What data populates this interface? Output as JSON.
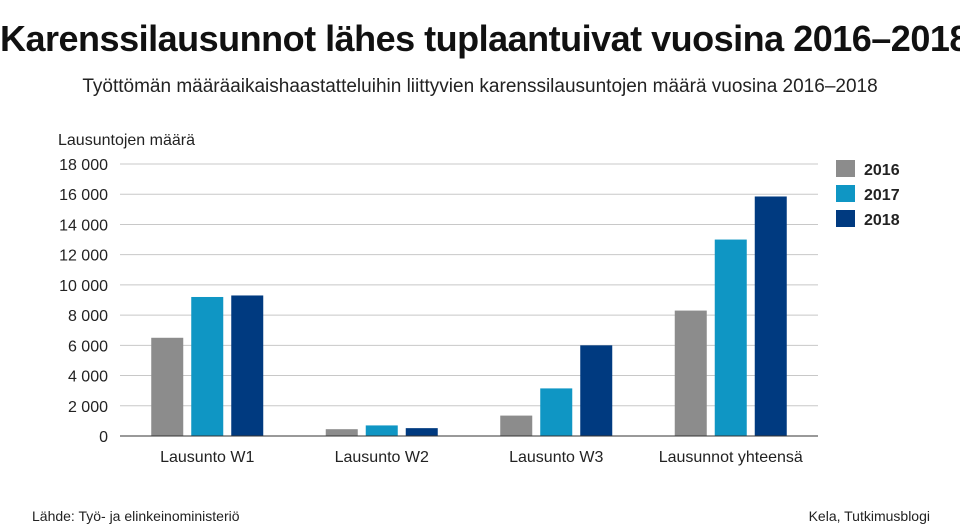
{
  "footer": {
    "source": "Lähde:  Työ- ja elinkeinoministeriö",
    "credit": "Kela, Tutkimusblogi"
  },
  "chart_data": {
    "type": "bar",
    "title": "Karenssilausunnot lähes tuplaantuivat vuosina 2016–2018",
    "subtitle": "Työttömän määräaikaishaastatteluihin liittyvien karenssilausuntojen määrä vuosina 2016–2018",
    "ylabel": "Lausuntojen määrä",
    "xlabel": "",
    "ylim": [
      0,
      18000
    ],
    "yticks": [
      0,
      2000,
      4000,
      6000,
      8000,
      10000,
      12000,
      14000,
      16000,
      18000
    ],
    "ytick_labels": [
      "0",
      "2 000",
      "4 000",
      "6 000",
      "8 000",
      "10 000",
      "12 000",
      "14 000",
      "16 000",
      "18 000"
    ],
    "categories": [
      "Lausunto W1",
      "Lausunto W2",
      "Lausunto W3",
      "Lausunnot yhteensä"
    ],
    "series": [
      {
        "name": "2016",
        "color": "#8c8c8c",
        "values": [
          6500,
          450,
          1350,
          8300
        ]
      },
      {
        "name": "2017",
        "color": "#0f96c4",
        "values": [
          9200,
          700,
          3150,
          13000
        ]
      },
      {
        "name": "2018",
        "color": "#003a80",
        "values": [
          9300,
          520,
          6000,
          15850
        ]
      }
    ],
    "grid": true,
    "legend": "top-right"
  }
}
